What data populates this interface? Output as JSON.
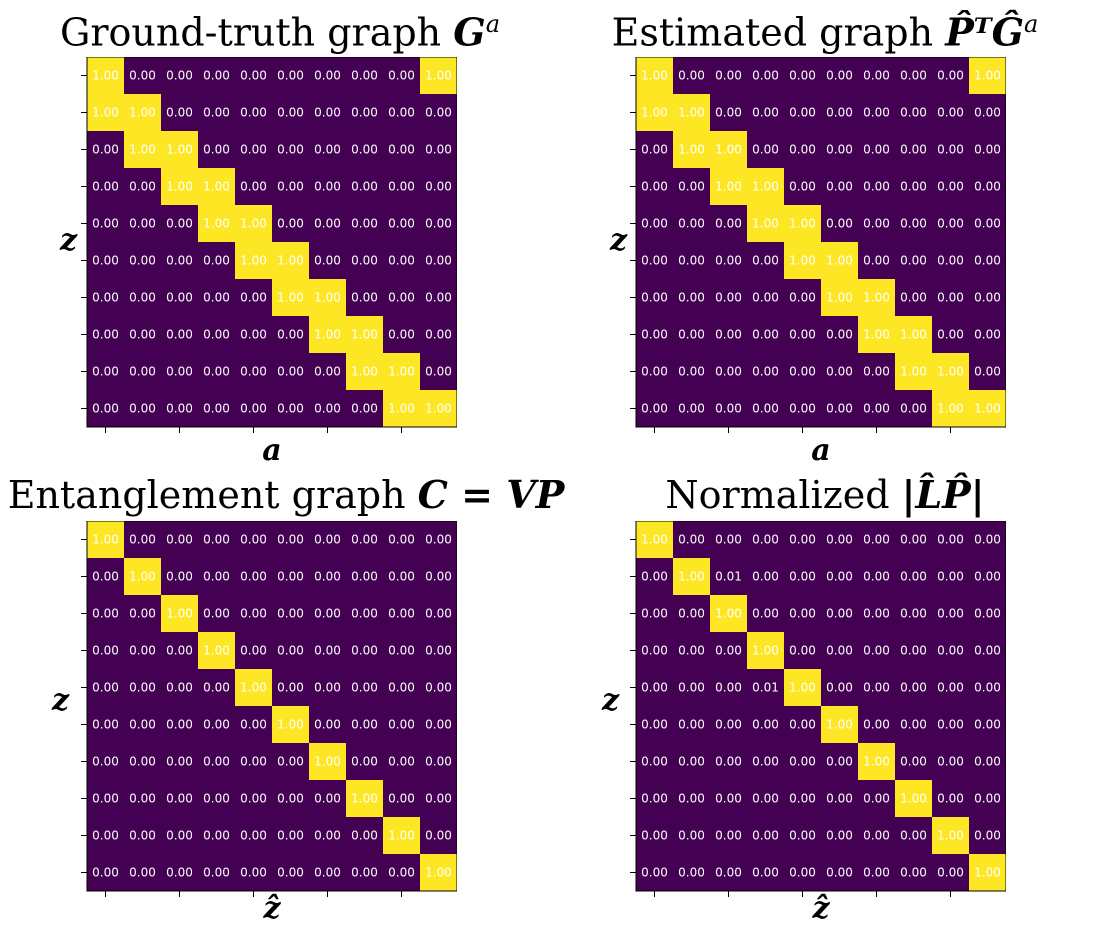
{
  "colors": {
    "low": "#440154",
    "high": "#fde725",
    "text": "#ffffff",
    "tick": "#000000"
  },
  "chart_data": [
    {
      "type": "heatmap",
      "title_text": "Ground-truth graph ",
      "title_math": "G",
      "title_sup": "a",
      "ylabel": "z",
      "xlabel": "a",
      "grid": false,
      "values": [
        [
          1,
          0,
          0,
          0,
          0,
          0,
          0,
          0,
          0,
          1
        ],
        [
          1,
          1,
          0,
          0,
          0,
          0,
          0,
          0,
          0,
          0
        ],
        [
          0,
          1,
          1,
          0,
          0,
          0,
          0,
          0,
          0,
          0
        ],
        [
          0,
          0,
          1,
          1,
          0,
          0,
          0,
          0,
          0,
          0
        ],
        [
          0,
          0,
          0,
          1,
          1,
          0,
          0,
          0,
          0,
          0
        ],
        [
          0,
          0,
          0,
          0,
          1,
          1,
          0,
          0,
          0,
          0
        ],
        [
          0,
          0,
          0,
          0,
          0,
          1,
          1,
          0,
          0,
          0
        ],
        [
          0,
          0,
          0,
          0,
          0,
          0,
          1,
          1,
          0,
          0
        ],
        [
          0,
          0,
          0,
          0,
          0,
          0,
          0,
          1,
          1,
          0
        ],
        [
          0,
          0,
          0,
          0,
          0,
          0,
          0,
          0,
          1,
          1
        ]
      ]
    },
    {
      "type": "heatmap",
      "title_text": "Estimated graph ",
      "title_math": "P̂ᵀĜ",
      "title_sup": "a",
      "ylabel": "z",
      "xlabel": "a",
      "grid": false,
      "values": [
        [
          1,
          0,
          0,
          0,
          0,
          0,
          0,
          0,
          0,
          1
        ],
        [
          1,
          1,
          0,
          0,
          0,
          0,
          0,
          0,
          0,
          0
        ],
        [
          0,
          1,
          1,
          0,
          0,
          0,
          0,
          0,
          0,
          0
        ],
        [
          0,
          0,
          1,
          1,
          0,
          0,
          0,
          0,
          0,
          0
        ],
        [
          0,
          0,
          0,
          1,
          1,
          0,
          0,
          0,
          0,
          0
        ],
        [
          0,
          0,
          0,
          0,
          1,
          1,
          0,
          0,
          0,
          0
        ],
        [
          0,
          0,
          0,
          0,
          0,
          1,
          1,
          0,
          0,
          0
        ],
        [
          0,
          0,
          0,
          0,
          0,
          0,
          1,
          1,
          0,
          0
        ],
        [
          0,
          0,
          0,
          0,
          0,
          0,
          0,
          1,
          1,
          0
        ],
        [
          0,
          0,
          0,
          0,
          0,
          0,
          0,
          0,
          1,
          1
        ]
      ]
    },
    {
      "type": "heatmap",
      "title_text": "Entanglement graph ",
      "title_math": "C = VP",
      "title_sup": "",
      "ylabel": "z",
      "xlabel": "ẑ",
      "grid": false,
      "values": [
        [
          1,
          0,
          0,
          0,
          0,
          0,
          0,
          0,
          0,
          0
        ],
        [
          0,
          1,
          0,
          0,
          0,
          0,
          0,
          0,
          0,
          0
        ],
        [
          0,
          0,
          1,
          0,
          0,
          0,
          0,
          0,
          0,
          0
        ],
        [
          0,
          0,
          0,
          1,
          0,
          0,
          0,
          0,
          0,
          0
        ],
        [
          0,
          0,
          0,
          0,
          1,
          0,
          0,
          0,
          0,
          0
        ],
        [
          0,
          0,
          0,
          0,
          0,
          1,
          0,
          0,
          0,
          0
        ],
        [
          0,
          0,
          0,
          0,
          0,
          0,
          1,
          0,
          0,
          0
        ],
        [
          0,
          0,
          0,
          0,
          0,
          0,
          0,
          1,
          0,
          0
        ],
        [
          0,
          0,
          0,
          0,
          0,
          0,
          0,
          0,
          1,
          0
        ],
        [
          0,
          0,
          0,
          0,
          0,
          0,
          0,
          0,
          0,
          1
        ]
      ]
    },
    {
      "type": "heatmap",
      "title_text": "Normalized ",
      "title_math": "|L̂P̂|",
      "title_sup": "",
      "ylabel": "z",
      "xlabel": "ẑ",
      "grid": false,
      "values": [
        [
          1,
          0,
          0,
          0,
          0,
          0,
          0,
          0,
          0,
          0
        ],
        [
          0,
          1,
          0.01,
          0,
          0,
          0,
          0,
          0,
          0,
          0
        ],
        [
          0,
          0,
          1,
          0,
          0,
          0,
          0,
          0,
          0,
          0
        ],
        [
          0,
          0,
          0,
          1,
          0,
          0,
          0,
          0,
          0,
          0
        ],
        [
          0,
          0,
          0,
          0.01,
          1,
          0,
          0,
          0,
          0,
          0
        ],
        [
          0,
          0,
          0,
          0,
          0,
          1,
          0,
          0,
          0,
          0
        ],
        [
          0,
          0,
          0,
          0,
          0,
          0,
          1,
          0,
          0,
          0
        ],
        [
          0,
          0,
          0,
          0,
          0,
          0,
          0,
          1,
          0,
          0
        ],
        [
          0,
          0,
          0,
          0,
          0,
          0,
          0,
          0,
          1,
          0
        ],
        [
          0,
          0,
          0,
          0,
          0,
          0,
          0,
          0,
          0,
          1
        ]
      ]
    }
  ]
}
